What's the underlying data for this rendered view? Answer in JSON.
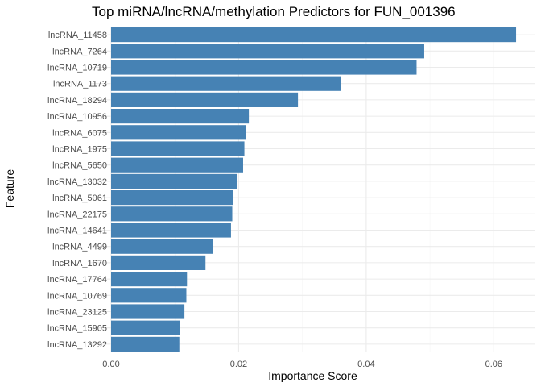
{
  "chart_data": {
    "type": "bar",
    "orientation": "horizontal",
    "title": "Top miRNA/lncRNA/methylation Predictors for FUN_001396",
    "xlabel": "Importance Score",
    "ylabel": "Feature",
    "xlim": [
      0,
      0.066
    ],
    "x_ticks": [
      0.0,
      0.02,
      0.04,
      0.06
    ],
    "x_tick_labels": [
      "0.00",
      "0.02",
      "0.04",
      "0.06"
    ],
    "grid": true,
    "legend": "none",
    "bar_color": "#4682B4",
    "categories": [
      "lncRNA_11458",
      "lncRNA_7264",
      "lncRNA_10719",
      "lncRNA_1173",
      "lncRNA_18294",
      "lncRNA_10956",
      "lncRNA_6075",
      "lncRNA_1975",
      "lncRNA_5650",
      "lncRNA_13032",
      "lncRNA_5061",
      "lncRNA_22175",
      "lncRNA_14641",
      "lncRNA_4499",
      "lncRNA_1670",
      "lncRNA_17764",
      "lncRNA_10769",
      "lncRNA_23125",
      "lncRNA_15905",
      "lncRNA_13292"
    ],
    "values": [
      0.0635,
      0.0491,
      0.0479,
      0.036,
      0.0293,
      0.0216,
      0.0212,
      0.0209,
      0.0207,
      0.0197,
      0.0191,
      0.019,
      0.0188,
      0.016,
      0.0148,
      0.0119,
      0.0118,
      0.0115,
      0.0108,
      0.0107
    ]
  }
}
